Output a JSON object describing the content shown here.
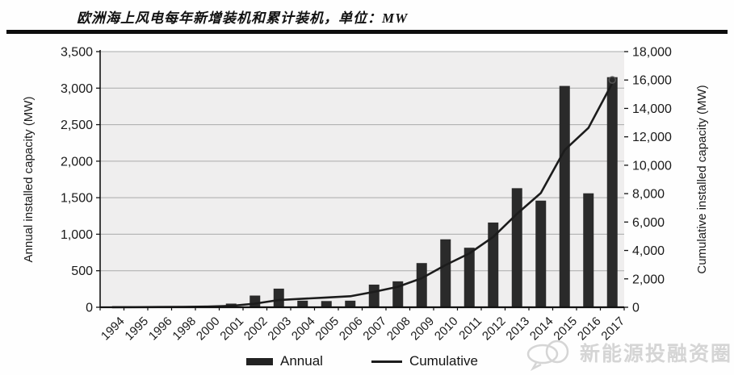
{
  "header": {
    "title": "欧洲海上风电每年新增装机和累计装机，单位：MW"
  },
  "legend": {
    "annual_label": "Annual",
    "cumulative_label": "Cumulative"
  },
  "watermark": {
    "logo": "cloud-circle-logo",
    "text": "新能源投融资圈"
  },
  "colors": {
    "bar": "#2a2a2a",
    "line": "#1c1c1c",
    "plot_bg": "#efeeee",
    "gridline": "#aaaaaa",
    "axis": "#111111",
    "text": "#1a1a1a",
    "watermark": "#d5d5d5"
  },
  "chart_data": {
    "type": "bar",
    "title": "欧洲海上风电每年新增装机和累计装机，单位：MW",
    "categories": [
      "1994",
      "1995",
      "1996",
      "1998",
      "2000",
      "2001",
      "2002",
      "2003",
      "2004",
      "2005",
      "2006",
      "2007",
      "2008",
      "2009",
      "2010",
      "2011",
      "2012",
      "2013",
      "2014",
      "2015",
      "2016",
      "2017"
    ],
    "series": [
      {
        "name": "Annual",
        "type": "bar",
        "axis": "left",
        "values": [
          2,
          5,
          10,
          10,
          17,
          50,
          160,
          255,
          90,
          85,
          90,
          310,
          355,
          605,
          930,
          815,
          1160,
          1630,
          1460,
          3030,
          1560,
          3150
        ]
      },
      {
        "name": "Cumulative",
        "type": "line",
        "axis": "right",
        "values": [
          2,
          7,
          17,
          27,
          45,
          95,
          255,
          510,
          600,
          685,
          775,
          1085,
          1440,
          2045,
          2975,
          3790,
          4950,
          6580,
          8040,
          11070,
          12630,
          15780
        ]
      }
    ],
    "left_axis": {
      "label": "Annual installed capacity (MW)",
      "min": 0,
      "max": 3500,
      "ticks": [
        0,
        500,
        1000,
        1500,
        2000,
        2500,
        3000,
        3500
      ]
    },
    "right_axis": {
      "label": "Cumulative installed capacity (MW)",
      "min": 0,
      "max": 18000,
      "ticks": [
        0,
        2000,
        4000,
        6000,
        8000,
        10000,
        12000,
        14000,
        16000,
        18000
      ]
    },
    "grid": true,
    "legend_position": "bottom",
    "x_tick_rotation": -45
  }
}
